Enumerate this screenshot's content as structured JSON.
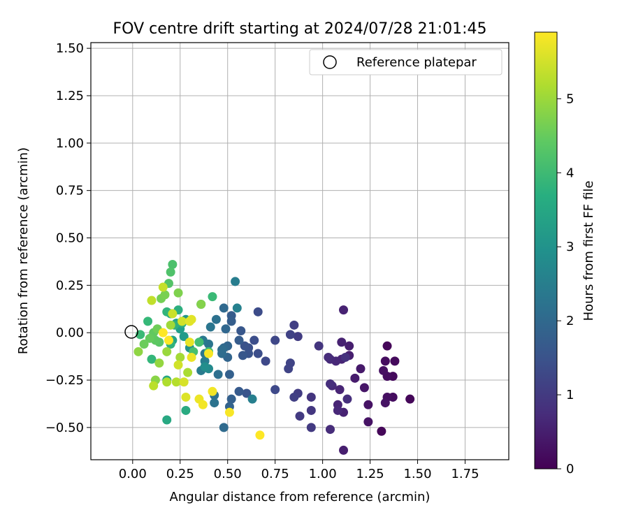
{
  "chart_data": {
    "type": "scatter",
    "title": "FOV centre drift starting at 2024/07/28 21:01:45",
    "xlabel": "Angular distance from reference (arcmin)",
    "ylabel": "Rotation from reference (arcmin)",
    "xlim": [
      -0.22,
      1.98
    ],
    "ylim": [
      -0.67,
      1.53
    ],
    "xticks": [
      "0.00",
      "0.25",
      "0.50",
      "0.75",
      "1.00",
      "1.25",
      "1.50",
      "1.75"
    ],
    "xtick_values": [
      0,
      0.25,
      0.5,
      0.75,
      1.0,
      1.25,
      1.5,
      1.75
    ],
    "yticks": [
      "1.50",
      "1.25",
      "1.00",
      "0.75",
      "0.50",
      "0.25",
      "0.00",
      "−0.25",
      "−0.50"
    ],
    "ytick_values": [
      1.5,
      1.25,
      1.0,
      0.75,
      0.5,
      0.25,
      0.0,
      -0.25,
      -0.5
    ],
    "grid": true,
    "legend": {
      "label": "Reference platepar",
      "position": "upper right",
      "marker": "open circle"
    },
    "reference_point": {
      "x": 0.0,
      "y": 0.0
    },
    "colorbar": {
      "label": "Hours from first FF file",
      "colormap": "viridis",
      "range": [
        0,
        5.9
      ],
      "ticks": [
        "0",
        "1",
        "2",
        "3",
        "4",
        "5"
      ],
      "tick_values": [
        0,
        1,
        2,
        3,
        4,
        5
      ]
    },
    "points": [
      {
        "x": 1.34,
        "y": -0.07,
        "c": 0.1
      },
      {
        "x": 1.31,
        "y": -0.52,
        "c": 0.1
      },
      {
        "x": 1.46,
        "y": -0.35,
        "c": 0.1
      },
      {
        "x": 1.38,
        "y": -0.15,
        "c": 0.15
      },
      {
        "x": 1.37,
        "y": -0.23,
        "c": 0.15
      },
      {
        "x": 1.37,
        "y": -0.34,
        "c": 0.2
      },
      {
        "x": 1.34,
        "y": -0.23,
        "c": 0.2
      },
      {
        "x": 1.33,
        "y": -0.15,
        "c": 0.2
      },
      {
        "x": 1.32,
        "y": -0.2,
        "c": 0.25
      },
      {
        "x": 1.34,
        "y": -0.34,
        "c": 0.25
      },
      {
        "x": 1.33,
        "y": -0.37,
        "c": 0.3
      },
      {
        "x": 1.24,
        "y": -0.38,
        "c": 0.3
      },
      {
        "x": 1.24,
        "y": -0.47,
        "c": 0.3
      },
      {
        "x": 1.22,
        "y": -0.29,
        "c": 0.35
      },
      {
        "x": 1.2,
        "y": -0.19,
        "c": 0.4
      },
      {
        "x": 1.17,
        "y": -0.24,
        "c": 0.45
      },
      {
        "x": 1.14,
        "y": -0.07,
        "c": 0.5
      },
      {
        "x": 1.14,
        "y": -0.12,
        "c": 0.5
      },
      {
        "x": 1.11,
        "y": -0.62,
        "c": 0.5
      },
      {
        "x": 1.11,
        "y": -0.42,
        "c": 0.55
      },
      {
        "x": 1.11,
        "y": 0.12,
        "c": 0.55
      },
      {
        "x": 1.1,
        "y": -0.05,
        "c": 0.55
      },
      {
        "x": 1.1,
        "y": -0.14,
        "c": 0.6
      },
      {
        "x": 1.09,
        "y": -0.3,
        "c": 0.6
      },
      {
        "x": 1.08,
        "y": -0.38,
        "c": 0.6
      },
      {
        "x": 1.08,
        "y": -0.41,
        "c": 0.65
      },
      {
        "x": 1.07,
        "y": -0.15,
        "c": 0.65
      },
      {
        "x": 1.05,
        "y": -0.28,
        "c": 0.7
      },
      {
        "x": 1.04,
        "y": -0.14,
        "c": 0.7
      },
      {
        "x": 1.03,
        "y": -0.13,
        "c": 0.75
      },
      {
        "x": 1.04,
        "y": -0.51,
        "c": 0.75
      },
      {
        "x": 1.04,
        "y": -0.27,
        "c": 0.8
      },
      {
        "x": 1.13,
        "y": -0.35,
        "c": 0.8
      },
      {
        "x": 1.12,
        "y": -0.13,
        "c": 0.85
      },
      {
        "x": 0.98,
        "y": -0.07,
        "c": 0.9
      },
      {
        "x": 0.94,
        "y": -0.34,
        "c": 0.9
      },
      {
        "x": 0.94,
        "y": -0.41,
        "c": 0.95
      },
      {
        "x": 0.94,
        "y": -0.5,
        "c": 1.0
      },
      {
        "x": 0.88,
        "y": -0.44,
        "c": 1.0
      },
      {
        "x": 0.87,
        "y": -0.32,
        "c": 1.05
      },
      {
        "x": 0.87,
        "y": -0.02,
        "c": 1.05
      },
      {
        "x": 0.85,
        "y": 0.04,
        "c": 1.1
      },
      {
        "x": 0.85,
        "y": -0.34,
        "c": 1.1
      },
      {
        "x": 0.83,
        "y": -0.01,
        "c": 1.15
      },
      {
        "x": 0.83,
        "y": -0.16,
        "c": 1.2
      },
      {
        "x": 0.82,
        "y": -0.19,
        "c": 1.2
      },
      {
        "x": 0.75,
        "y": -0.04,
        "c": 1.25
      },
      {
        "x": 0.75,
        "y": -0.3,
        "c": 1.3
      },
      {
        "x": 0.7,
        "y": -0.15,
        "c": 1.3
      },
      {
        "x": 0.66,
        "y": 0.11,
        "c": 1.35
      },
      {
        "x": 0.66,
        "y": -0.11,
        "c": 1.4
      },
      {
        "x": 0.64,
        "y": -0.04,
        "c": 1.4
      },
      {
        "x": 0.61,
        "y": -0.08,
        "c": 1.45
      },
      {
        "x": 0.61,
        "y": -0.11,
        "c": 1.5
      },
      {
        "x": 0.59,
        "y": -0.07,
        "c": 1.5
      },
      {
        "x": 0.6,
        "y": -0.32,
        "c": 1.55
      },
      {
        "x": 0.58,
        "y": -0.12,
        "c": 1.6
      },
      {
        "x": 0.57,
        "y": 0.01,
        "c": 1.6
      },
      {
        "x": 0.56,
        "y": -0.31,
        "c": 1.65
      },
      {
        "x": 0.56,
        "y": -0.04,
        "c": 1.7
      },
      {
        "x": 0.52,
        "y": 0.09,
        "c": 1.7
      },
      {
        "x": 0.52,
        "y": 0.06,
        "c": 1.75
      },
      {
        "x": 0.52,
        "y": -0.35,
        "c": 1.8
      },
      {
        "x": 0.51,
        "y": -0.22,
        "c": 1.8
      },
      {
        "x": 0.51,
        "y": -0.39,
        "c": 1.85
      },
      {
        "x": 0.5,
        "y": -0.07,
        "c": 1.9
      },
      {
        "x": 0.5,
        "y": -0.13,
        "c": 1.9
      },
      {
        "x": 0.49,
        "y": 0.02,
        "c": 1.95
      },
      {
        "x": 0.48,
        "y": -0.08,
        "c": 2.0
      },
      {
        "x": 0.48,
        "y": 0.13,
        "c": 2.0
      },
      {
        "x": 0.48,
        "y": -0.5,
        "c": 2.05
      },
      {
        "x": 0.47,
        "y": -0.11,
        "c": 2.1
      },
      {
        "x": 0.47,
        "y": -0.09,
        "c": 2.1
      },
      {
        "x": 0.45,
        "y": -0.22,
        "c": 2.15
      },
      {
        "x": 0.44,
        "y": 0.07,
        "c": 2.2
      },
      {
        "x": 0.43,
        "y": -0.33,
        "c": 2.2
      },
      {
        "x": 0.43,
        "y": -0.37,
        "c": 2.25
      },
      {
        "x": 0.41,
        "y": 0.03,
        "c": 2.3
      },
      {
        "x": 0.4,
        "y": -0.06,
        "c": 2.3
      },
      {
        "x": 0.38,
        "y": -0.11,
        "c": 2.35
      },
      {
        "x": 0.37,
        "y": -0.04,
        "c": 2.4
      },
      {
        "x": 0.36,
        "y": -0.2,
        "c": 2.45
      },
      {
        "x": 0.38,
        "y": -0.15,
        "c": 2.5
      },
      {
        "x": 0.54,
        "y": 0.27,
        "c": 2.5
      },
      {
        "x": 0.63,
        "y": -0.35,
        "c": 2.55
      },
      {
        "x": 0.55,
        "y": 0.13,
        "c": 2.6
      },
      {
        "x": 0.36,
        "y": 0.15,
        "c": 2.7
      },
      {
        "x": 0.4,
        "y": -0.19,
        "c": 2.8
      },
      {
        "x": 0.38,
        "y": -0.18,
        "c": 2.9
      },
      {
        "x": 0.3,
        "y": -0.08,
        "c": 3.0
      },
      {
        "x": 0.28,
        "y": 0.07,
        "c": 3.1
      },
      {
        "x": 0.27,
        "y": -0.02,
        "c": 3.2
      },
      {
        "x": 0.25,
        "y": 0.02,
        "c": 3.3
      },
      {
        "x": 0.23,
        "y": 0.05,
        "c": 3.35
      },
      {
        "x": 0.21,
        "y": -0.04,
        "c": 3.4
      },
      {
        "x": 0.2,
        "y": 0.1,
        "c": 3.45
      },
      {
        "x": 0.18,
        "y": -0.25,
        "c": 3.5
      },
      {
        "x": 0.18,
        "y": -0.46,
        "c": 3.55
      },
      {
        "x": 0.28,
        "y": -0.41,
        "c": 3.6
      },
      {
        "x": 0.26,
        "y": 0.05,
        "c": 3.65
      },
      {
        "x": 0.24,
        "y": 0.12,
        "c": 3.7
      },
      {
        "x": 0.22,
        "y": 0.04,
        "c": 3.75
      },
      {
        "x": 0.2,
        "y": -0.06,
        "c": 3.8
      },
      {
        "x": 0.18,
        "y": 0.11,
        "c": 3.85
      },
      {
        "x": 0.1,
        "y": -0.14,
        "c": 3.9
      },
      {
        "x": 0.08,
        "y": 0.06,
        "c": 3.95
      },
      {
        "x": 0.04,
        "y": -0.01,
        "c": 4.0
      },
      {
        "x": 0.42,
        "y": 0.19,
        "c": 4.0
      },
      {
        "x": 0.4,
        "y": -0.1,
        "c": 4.05
      },
      {
        "x": 0.35,
        "y": -0.05,
        "c": 4.1
      },
      {
        "x": 0.32,
        "y": -0.1,
        "c": 4.15
      },
      {
        "x": 0.21,
        "y": 0.36,
        "c": 4.2
      },
      {
        "x": 0.2,
        "y": 0.32,
        "c": 4.25
      },
      {
        "x": 0.19,
        "y": 0.26,
        "c": 4.3
      },
      {
        "x": 0.14,
        "y": -0.05,
        "c": 4.35
      },
      {
        "x": 0.12,
        "y": -0.04,
        "c": 4.4
      },
      {
        "x": 0.11,
        "y": 0.0,
        "c": 4.45
      },
      {
        "x": 0.09,
        "y": -0.03,
        "c": 4.5
      },
      {
        "x": 0.06,
        "y": -0.06,
        "c": 4.55
      },
      {
        "x": 0.13,
        "y": 0.02,
        "c": 4.6
      },
      {
        "x": 0.15,
        "y": 0.18,
        "c": 4.65
      },
      {
        "x": 0.17,
        "y": 0.2,
        "c": 4.7
      },
      {
        "x": 0.24,
        "y": 0.21,
        "c": 4.75
      },
      {
        "x": 0.36,
        "y": 0.15,
        "c": 4.8
      },
      {
        "x": 0.12,
        "y": -0.25,
        "c": 4.85
      },
      {
        "x": 0.03,
        "y": -0.1,
        "c": 4.9
      },
      {
        "x": 0.14,
        "y": -0.16,
        "c": 4.95
      },
      {
        "x": 0.18,
        "y": -0.1,
        "c": 5.0
      },
      {
        "x": 0.2,
        "y": 0.04,
        "c": 5.05
      },
      {
        "x": 0.25,
        "y": -0.13,
        "c": 5.1
      },
      {
        "x": 0.29,
        "y": -0.21,
        "c": 5.15
      },
      {
        "x": 0.18,
        "y": -0.26,
        "c": 5.2
      },
      {
        "x": 0.23,
        "y": -0.26,
        "c": 5.25
      },
      {
        "x": 0.11,
        "y": -0.28,
        "c": 5.3
      },
      {
        "x": 0.1,
        "y": 0.17,
        "c": 5.35
      },
      {
        "x": 0.16,
        "y": 0.24,
        "c": 5.4
      },
      {
        "x": 0.21,
        "y": 0.1,
        "c": 5.45
      },
      {
        "x": 0.24,
        "y": -0.17,
        "c": 5.5
      },
      {
        "x": 0.26,
        "y": 0.06,
        "c": 5.5
      },
      {
        "x": 0.27,
        "y": -0.26,
        "c": 5.55
      },
      {
        "x": 0.28,
        "y": -0.34,
        "c": 5.6
      },
      {
        "x": 0.3,
        "y": 0.06,
        "c": 5.65
      },
      {
        "x": 0.31,
        "y": 0.07,
        "c": 5.65
      },
      {
        "x": 0.3,
        "y": -0.05,
        "c": 5.7
      },
      {
        "x": 0.31,
        "y": -0.13,
        "c": 5.75
      },
      {
        "x": 0.35,
        "y": -0.35,
        "c": 5.75
      },
      {
        "x": 0.37,
        "y": -0.38,
        "c": 5.8
      },
      {
        "x": 0.42,
        "y": -0.31,
        "c": 5.8
      },
      {
        "x": 0.4,
        "y": -0.11,
        "c": 5.85
      },
      {
        "x": 0.51,
        "y": -0.42,
        "c": 5.85
      },
      {
        "x": 0.67,
        "y": -0.54,
        "c": 5.9
      },
      {
        "x": 0.16,
        "y": 0.0,
        "c": 5.9
      },
      {
        "x": 0.19,
        "y": -0.04,
        "c": 5.9
      }
    ]
  }
}
